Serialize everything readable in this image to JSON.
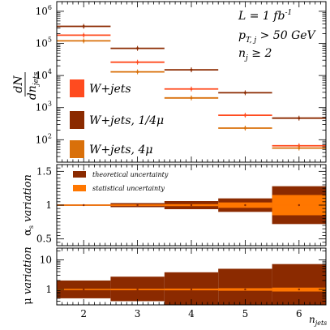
{
  "chart_data": [
    {
      "panel": "main",
      "type": "scatter",
      "x": [
        2,
        3,
        4,
        5,
        6
      ],
      "x_bin_halfwidth": 0.5,
      "ylabel_num": "dN",
      "ylabel_den": "dn",
      "ylabel_den_sub": "jets",
      "yscale": "log",
      "ylim": [
        20,
        2000000
      ],
      "yticks": [
        100,
        1000,
        10000,
        100000,
        1000000
      ],
      "ytick_labels": [
        {
          "base": "10",
          "exp": "2"
        },
        {
          "base": "10",
          "exp": "3"
        },
        {
          "base": "10",
          "exp": "4"
        },
        {
          "base": "10",
          "exp": "5"
        },
        {
          "base": "10",
          "exp": "6"
        }
      ],
      "annotations": [
        {
          "main": "L = 1 fb",
          "sup": "-1"
        },
        {
          "main": "p",
          "sub": "T, j",
          "tail": " > 50 GeV"
        },
        {
          "main": "n",
          "sub": "j",
          "tail": " ≥ 2"
        }
      ],
      "legend_position": "left",
      "series": [
        {
          "name": "W+jets",
          "color": "#ff4b1f",
          "values": [
            180000,
            26000,
            3800,
            580,
            65
          ]
        },
        {
          "name": "W+jets, 1/4μ",
          "color": "#8b2a00",
          "values": [
            340000,
            70000,
            15000,
            2900,
            470
          ]
        },
        {
          "name": "W+jets, 4μ",
          "color": "#d9700a",
          "values": [
            120000,
            13000,
            2000,
            230,
            55
          ]
        }
      ]
    },
    {
      "panel": "alpha_s",
      "type": "bar",
      "ylabel_greek": "α",
      "ylabel_sub": "s",
      "ylabel_tail": " variation",
      "ylim": [
        0.4,
        1.6
      ],
      "yticks": [
        0.5,
        1,
        1.5
      ],
      "ytick_labels": [
        "0.5",
        "1",
        "1.5"
      ],
      "legend": [
        {
          "name": "theoretical uncertainty",
          "color": "#8b2a00"
        },
        {
          "name": "statistical uncertainty",
          "color": "#ff7700"
        }
      ],
      "x": [
        2,
        3,
        4,
        5,
        6
      ],
      "theory_band": [
        [
          0.99,
          1.01
        ],
        [
          0.97,
          1.03
        ],
        [
          0.94,
          1.06
        ],
        [
          0.9,
          1.1
        ],
        [
          0.72,
          1.28
        ]
      ],
      "stat_band": [
        [
          0.995,
          1.005
        ],
        [
          0.99,
          1.01
        ],
        [
          0.985,
          1.015
        ],
        [
          0.96,
          1.04
        ],
        [
          0.85,
          1.15
        ]
      ],
      "central": [
        1,
        1,
        1,
        1,
        1
      ]
    },
    {
      "panel": "mu",
      "type": "bar",
      "ylabel_greek": "μ",
      "ylabel_tail": " variation",
      "yscale": "log",
      "ylim": [
        0.3,
        25
      ],
      "yticks": [
        1,
        10
      ],
      "ytick_labels": [
        "1",
        "10"
      ],
      "xlabel_main": "n",
      "xlabel_sub": "jets",
      "xticks": [
        2,
        3,
        4,
        5,
        6
      ],
      "xtick_labels": [
        "2",
        "3",
        "4",
        "5",
        "6"
      ],
      "xlim": [
        1.5,
        6.5
      ],
      "x": [
        2,
        3,
        4,
        5,
        6
      ],
      "theory_band": [
        [
          0.5,
          2.0
        ],
        [
          0.4,
          2.7
        ],
        [
          0.3,
          3.8
        ],
        [
          0.3,
          5.0
        ],
        [
          0.3,
          7.2
        ]
      ],
      "stat_band": [
        [
          0.97,
          1.03
        ],
        [
          0.95,
          1.05
        ],
        [
          0.93,
          1.07
        ],
        [
          0.9,
          1.1
        ],
        [
          0.85,
          1.15
        ]
      ],
      "central": [
        1,
        1,
        1,
        1,
        1
      ]
    }
  ]
}
